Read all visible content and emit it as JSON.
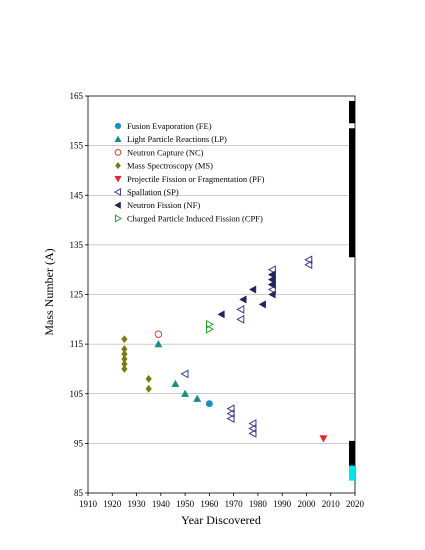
{
  "chart_data": {
    "type": "scatter",
    "xlabel": "Year Discovered",
    "ylabel": "Mass Number (A)",
    "xlim": [
      1910,
      2020
    ],
    "ylim": [
      85,
      165
    ],
    "xticks": [
      1910,
      1920,
      1930,
      1940,
      1950,
      1960,
      1970,
      1980,
      1990,
      2000,
      2010,
      2020
    ],
    "yticks": [
      85,
      95,
      105,
      115,
      125,
      135,
      145,
      155,
      165
    ],
    "grid": "horizontal",
    "legend_position": "top-left",
    "series": [
      {
        "name": "Fusion Evaporation (FE)",
        "marker": "circle-filled",
        "color": "#1b8ec9",
        "points": [
          [
            1960,
            103
          ]
        ]
      },
      {
        "name": "Light Particle Reactions (LP)",
        "marker": "triangle-up-filled",
        "color": "#1a8f8a",
        "points": [
          [
            1939,
            115
          ],
          [
            1946,
            107
          ],
          [
            1950,
            105
          ],
          [
            1955,
            104
          ]
        ]
      },
      {
        "name": "Neutron Capture (NC)",
        "marker": "circle-open",
        "color": "#d63a2c",
        "points": [
          [
            1939,
            117
          ]
        ]
      },
      {
        "name": "Mass Spectroscopy (MS)",
        "marker": "diamond-filled",
        "color": "#7a7a10",
        "points": [
          [
            1925,
            110
          ],
          [
            1925,
            111
          ],
          [
            1925,
            112
          ],
          [
            1925,
            113
          ],
          [
            1925,
            114
          ],
          [
            1925,
            116
          ],
          [
            1935,
            106
          ],
          [
            1935,
            108
          ]
        ]
      },
      {
        "name": "Projectile Fission or Fragmentation (PF)",
        "marker": "triangle-down-filled",
        "color": "#e0262b",
        "points": [
          [
            2007,
            96
          ]
        ]
      },
      {
        "name": "Spallation (SP)",
        "marker": "triangle-left-open",
        "color": "#3a3a8c",
        "points": [
          [
            1950,
            109
          ],
          [
            1969,
            100
          ],
          [
            1969,
            101
          ],
          [
            1969,
            102
          ],
          [
            1978,
            97
          ],
          [
            1978,
            98
          ],
          [
            1978,
            99
          ],
          [
            1973,
            120
          ],
          [
            1973,
            122
          ],
          [
            1986,
            126
          ],
          [
            1986,
            127
          ],
          [
            1986,
            128
          ],
          [
            1986,
            129
          ],
          [
            1986,
            130
          ],
          [
            2001,
            131
          ],
          [
            2001,
            132
          ]
        ]
      },
      {
        "name": "Neutron Fission (NF)",
        "marker": "triangle-left-filled",
        "color": "#23235e",
        "points": [
          [
            1965,
            121
          ],
          [
            1974,
            124
          ],
          [
            1978,
            126
          ],
          [
            1982,
            123
          ],
          [
            1986,
            125
          ],
          [
            1986,
            127
          ],
          [
            1986,
            128
          ],
          [
            1986,
            129
          ]
        ]
      },
      {
        "name": "Charged Particle Induced Fission (CPF)",
        "marker": "triangle-right-open",
        "color": "#2e9e3a",
        "points": [
          [
            1960,
            118
          ],
          [
            1960,
            119
          ]
        ]
      }
    ],
    "side_bars": [
      {
        "from": 159.5,
        "to": 164,
        "color": "#000000"
      },
      {
        "from": 132.5,
        "to": 158.5,
        "color": "#000000"
      },
      {
        "from": 90.5,
        "to": 95.5,
        "color": "#000000"
      },
      {
        "from": 87.5,
        "to": 90.5,
        "color": "#00e5e5"
      }
    ]
  }
}
